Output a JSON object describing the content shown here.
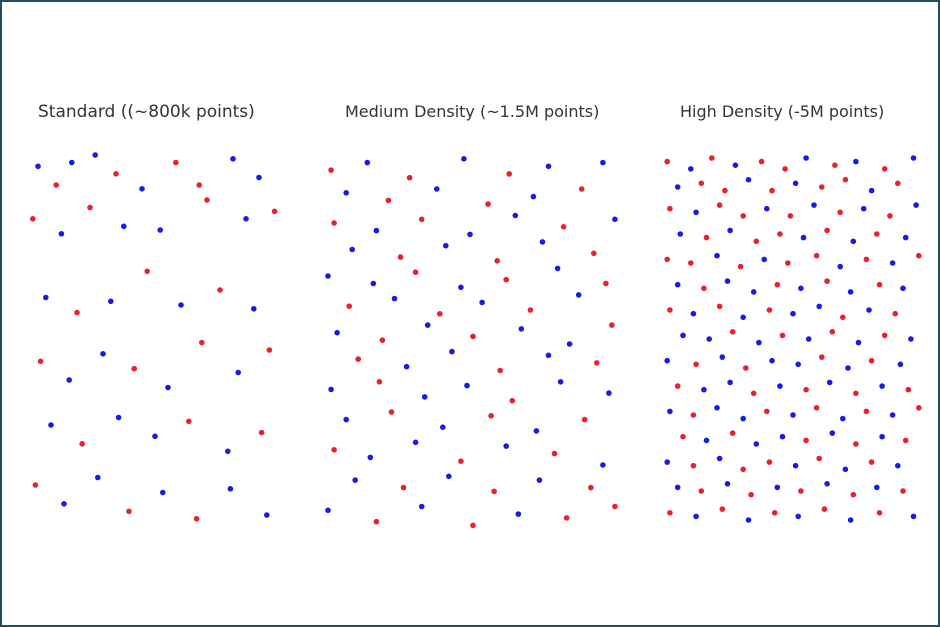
{
  "chart_data": [
    {
      "type": "scatter",
      "title": "Standard  ((~800k points)",
      "colors": {
        "r": "#e8212b",
        "b": "#1a1ae6"
      },
      "grid": false,
      "points": [
        [
          5,
          3,
          "b"
        ],
        [
          12,
          8,
          "r"
        ],
        [
          18,
          2,
          "b"
        ],
        [
          27,
          0,
          "b"
        ],
        [
          35,
          5,
          "r"
        ],
        [
          45,
          9,
          "b"
        ],
        [
          58,
          2,
          "r"
        ],
        [
          67,
          8,
          "r"
        ],
        [
          80,
          1,
          "b"
        ],
        [
          90,
          6,
          "b"
        ],
        [
          3,
          17,
          "r"
        ],
        [
          14,
          21,
          "b"
        ],
        [
          25,
          14,
          "r"
        ],
        [
          38,
          19,
          "b"
        ],
        [
          52,
          20,
          "b"
        ],
        [
          70,
          12,
          "r"
        ],
        [
          85,
          17,
          "b"
        ],
        [
          96,
          15,
          "r"
        ],
        [
          8,
          38,
          "b"
        ],
        [
          20,
          42,
          "r"
        ],
        [
          33,
          39,
          "b"
        ],
        [
          47,
          31,
          "r"
        ],
        [
          60,
          40,
          "b"
        ],
        [
          75,
          36,
          "r"
        ],
        [
          88,
          41,
          "b"
        ],
        [
          6,
          55,
          "r"
        ],
        [
          17,
          60,
          "b"
        ],
        [
          30,
          53,
          "b"
        ],
        [
          42,
          57,
          "r"
        ],
        [
          55,
          62,
          "b"
        ],
        [
          68,
          50,
          "r"
        ],
        [
          82,
          58,
          "b"
        ],
        [
          94,
          52,
          "r"
        ],
        [
          10,
          72,
          "b"
        ],
        [
          22,
          77,
          "r"
        ],
        [
          36,
          70,
          "b"
        ],
        [
          50,
          75,
          "b"
        ],
        [
          63,
          71,
          "r"
        ],
        [
          78,
          79,
          "b"
        ],
        [
          91,
          74,
          "r"
        ],
        [
          4,
          88,
          "r"
        ],
        [
          15,
          93,
          "b"
        ],
        [
          28,
          86,
          "b"
        ],
        [
          40,
          95,
          "r"
        ],
        [
          53,
          90,
          "b"
        ],
        [
          66,
          97,
          "r"
        ],
        [
          79,
          89,
          "b"
        ],
        [
          93,
          96,
          "b"
        ]
      ]
    },
    {
      "type": "scatter",
      "title": "Medium Density (~1.5M points)",
      "colors": {
        "r": "#e8212b",
        "b": "#1a1ae6"
      },
      "grid": false,
      "points": [
        [
          3,
          4,
          "r"
        ],
        [
          15,
          2,
          "b"
        ],
        [
          29,
          6,
          "r"
        ],
        [
          47,
          1,
          "b"
        ],
        [
          62,
          5,
          "r"
        ],
        [
          75,
          3,
          "b"
        ],
        [
          93,
          2,
          "b"
        ],
        [
          8,
          10,
          "b"
        ],
        [
          22,
          12,
          "r"
        ],
        [
          38,
          9,
          "b"
        ],
        [
          55,
          13,
          "r"
        ],
        [
          70,
          11,
          "b"
        ],
        [
          86,
          9,
          "r"
        ],
        [
          4,
          18,
          "r"
        ],
        [
          18,
          20,
          "b"
        ],
        [
          33,
          17,
          "r"
        ],
        [
          49,
          21,
          "b"
        ],
        [
          64,
          16,
          "b"
        ],
        [
          80,
          19,
          "r"
        ],
        [
          97,
          17,
          "b"
        ],
        [
          10,
          25,
          "b"
        ],
        [
          26,
          27,
          "r"
        ],
        [
          41,
          24,
          "b"
        ],
        [
          58,
          28,
          "r"
        ],
        [
          73,
          23,
          "b"
        ],
        [
          90,
          26,
          "r"
        ],
        [
          2,
          32,
          "b"
        ],
        [
          17,
          34,
          "b"
        ],
        [
          31,
          31,
          "r"
        ],
        [
          46,
          35,
          "b"
        ],
        [
          61,
          33,
          "r"
        ],
        [
          78,
          30,
          "b"
        ],
        [
          94,
          34,
          "r"
        ],
        [
          9,
          40,
          "r"
        ],
        [
          24,
          38,
          "b"
        ],
        [
          39,
          42,
          "r"
        ],
        [
          53,
          39,
          "b"
        ],
        [
          69,
          41,
          "r"
        ],
        [
          85,
          37,
          "b"
        ],
        [
          5,
          47,
          "b"
        ],
        [
          20,
          49,
          "r"
        ],
        [
          35,
          45,
          "b"
        ],
        [
          50,
          48,
          "r"
        ],
        [
          66,
          46,
          "b"
        ],
        [
          82,
          50,
          "b"
        ],
        [
          96,
          45,
          "r"
        ],
        [
          12,
          54,
          "r"
        ],
        [
          28,
          56,
          "b"
        ],
        [
          43,
          52,
          "b"
        ],
        [
          59,
          57,
          "r"
        ],
        [
          75,
          53,
          "b"
        ],
        [
          91,
          55,
          "r"
        ],
        [
          3,
          62,
          "b"
        ],
        [
          19,
          60,
          "r"
        ],
        [
          34,
          64,
          "b"
        ],
        [
          48,
          61,
          "b"
        ],
        [
          63,
          65,
          "r"
        ],
        [
          79,
          60,
          "b"
        ],
        [
          95,
          63,
          "b"
        ],
        [
          8,
          70,
          "b"
        ],
        [
          23,
          68,
          "r"
        ],
        [
          40,
          72,
          "b"
        ],
        [
          56,
          69,
          "r"
        ],
        [
          71,
          73,
          "b"
        ],
        [
          87,
          70,
          "r"
        ],
        [
          4,
          78,
          "r"
        ],
        [
          16,
          80,
          "b"
        ],
        [
          31,
          76,
          "b"
        ],
        [
          46,
          81,
          "r"
        ],
        [
          61,
          77,
          "b"
        ],
        [
          77,
          79,
          "r"
        ],
        [
          93,
          82,
          "b"
        ],
        [
          11,
          86,
          "b"
        ],
        [
          27,
          88,
          "r"
        ],
        [
          42,
          85,
          "b"
        ],
        [
          57,
          89,
          "r"
        ],
        [
          72,
          86,
          "b"
        ],
        [
          89,
          88,
          "r"
        ],
        [
          2,
          94,
          "b"
        ],
        [
          18,
          97,
          "r"
        ],
        [
          33,
          93,
          "b"
        ],
        [
          50,
          98,
          "r"
        ],
        [
          65,
          95,
          "b"
        ],
        [
          81,
          96,
          "r"
        ],
        [
          97,
          93,
          "r"
        ]
      ]
    },
    {
      "type": "scatter",
      "title": "High Density (-5M points)",
      "colors": {
        "r": "#e8212b",
        "b": "#1a1ae6"
      },
      "grid": false,
      "points": [
        [
          2,
          1,
          "r"
        ],
        [
          11,
          3,
          "b"
        ],
        [
          19,
          0,
          "r"
        ],
        [
          28,
          2,
          "b"
        ],
        [
          38,
          1,
          "r"
        ],
        [
          47,
          3,
          "r"
        ],
        [
          55,
          0,
          "b"
        ],
        [
          66,
          2,
          "r"
        ],
        [
          74,
          1,
          "b"
        ],
        [
          85,
          3,
          "r"
        ],
        [
          96,
          0,
          "b"
        ],
        [
          6,
          8,
          "b"
        ],
        [
          15,
          7,
          "r"
        ],
        [
          24,
          9,
          "r"
        ],
        [
          33,
          6,
          "b"
        ],
        [
          42,
          9,
          "r"
        ],
        [
          51,
          7,
          "b"
        ],
        [
          61,
          8,
          "r"
        ],
        [
          70,
          6,
          "r"
        ],
        [
          80,
          9,
          "b"
        ],
        [
          90,
          7,
          "r"
        ],
        [
          3,
          14,
          "r"
        ],
        [
          13,
          15,
          "b"
        ],
        [
          22,
          13,
          "r"
        ],
        [
          31,
          16,
          "r"
        ],
        [
          40,
          14,
          "b"
        ],
        [
          49,
          16,
          "r"
        ],
        [
          58,
          13,
          "b"
        ],
        [
          68,
          15,
          "r"
        ],
        [
          77,
          14,
          "b"
        ],
        [
          87,
          16,
          "r"
        ],
        [
          97,
          13,
          "b"
        ],
        [
          7,
          21,
          "b"
        ],
        [
          17,
          22,
          "r"
        ],
        [
          26,
          20,
          "b"
        ],
        [
          36,
          23,
          "r"
        ],
        [
          45,
          21,
          "r"
        ],
        [
          54,
          22,
          "b"
        ],
        [
          63,
          20,
          "r"
        ],
        [
          73,
          23,
          "b"
        ],
        [
          82,
          21,
          "r"
        ],
        [
          93,
          22,
          "b"
        ],
        [
          2,
          28,
          "r"
        ],
        [
          11,
          29,
          "r"
        ],
        [
          21,
          27,
          "b"
        ],
        [
          30,
          30,
          "r"
        ],
        [
          39,
          28,
          "b"
        ],
        [
          48,
          29,
          "r"
        ],
        [
          59,
          27,
          "r"
        ],
        [
          68,
          30,
          "b"
        ],
        [
          78,
          28,
          "r"
        ],
        [
          88,
          29,
          "b"
        ],
        [
          98,
          27,
          "r"
        ],
        [
          6,
          35,
          "b"
        ],
        [
          16,
          36,
          "r"
        ],
        [
          25,
          34,
          "b"
        ],
        [
          35,
          37,
          "b"
        ],
        [
          44,
          35,
          "r"
        ],
        [
          53,
          36,
          "b"
        ],
        [
          63,
          34,
          "r"
        ],
        [
          72,
          37,
          "b"
        ],
        [
          83,
          35,
          "r"
        ],
        [
          92,
          36,
          "b"
        ],
        [
          3,
          42,
          "r"
        ],
        [
          12,
          43,
          "b"
        ],
        [
          22,
          41,
          "r"
        ],
        [
          31,
          44,
          "b"
        ],
        [
          41,
          42,
          "r"
        ],
        [
          50,
          43,
          "b"
        ],
        [
          60,
          41,
          "b"
        ],
        [
          69,
          44,
          "r"
        ],
        [
          79,
          42,
          "b"
        ],
        [
          89,
          43,
          "r"
        ],
        [
          8,
          49,
          "b"
        ],
        [
          18,
          50,
          "b"
        ],
        [
          27,
          48,
          "r"
        ],
        [
          37,
          51,
          "b"
        ],
        [
          46,
          49,
          "r"
        ],
        [
          56,
          50,
          "b"
        ],
        [
          65,
          48,
          "r"
        ],
        [
          75,
          51,
          "b"
        ],
        [
          85,
          49,
          "r"
        ],
        [
          95,
          50,
          "b"
        ],
        [
          2,
          56,
          "b"
        ],
        [
          13,
          57,
          "r"
        ],
        [
          23,
          55,
          "b"
        ],
        [
          32,
          58,
          "r"
        ],
        [
          42,
          56,
          "b"
        ],
        [
          52,
          57,
          "b"
        ],
        [
          61,
          55,
          "r"
        ],
        [
          71,
          58,
          "b"
        ],
        [
          80,
          56,
          "r"
        ],
        [
          91,
          57,
          "b"
        ],
        [
          6,
          63,
          "r"
        ],
        [
          16,
          64,
          "b"
        ],
        [
          26,
          62,
          "b"
        ],
        [
          35,
          65,
          "r"
        ],
        [
          45,
          63,
          "b"
        ],
        [
          55,
          64,
          "r"
        ],
        [
          64,
          62,
          "b"
        ],
        [
          74,
          65,
          "r"
        ],
        [
          84,
          63,
          "b"
        ],
        [
          94,
          64,
          "r"
        ],
        [
          3,
          70,
          "b"
        ],
        [
          12,
          71,
          "r"
        ],
        [
          21,
          69,
          "b"
        ],
        [
          31,
          72,
          "b"
        ],
        [
          40,
          70,
          "r"
        ],
        [
          50,
          71,
          "b"
        ],
        [
          59,
          69,
          "r"
        ],
        [
          69,
          72,
          "b"
        ],
        [
          78,
          70,
          "r"
        ],
        [
          88,
          71,
          "b"
        ],
        [
          98,
          69,
          "r"
        ],
        [
          8,
          77,
          "r"
        ],
        [
          17,
          78,
          "b"
        ],
        [
          27,
          76,
          "r"
        ],
        [
          36,
          79,
          "b"
        ],
        [
          46,
          77,
          "b"
        ],
        [
          55,
          78,
          "r"
        ],
        [
          65,
          76,
          "b"
        ],
        [
          74,
          79,
          "r"
        ],
        [
          84,
          77,
          "b"
        ],
        [
          93,
          78,
          "r"
        ],
        [
          2,
          84,
          "b"
        ],
        [
          12,
          85,
          "r"
        ],
        [
          22,
          83,
          "b"
        ],
        [
          31,
          86,
          "r"
        ],
        [
          41,
          84,
          "r"
        ],
        [
          51,
          85,
          "b"
        ],
        [
          60,
          83,
          "r"
        ],
        [
          70,
          86,
          "b"
        ],
        [
          80,
          84,
          "r"
        ],
        [
          90,
          85,
          "b"
        ],
        [
          6,
          91,
          "b"
        ],
        [
          15,
          92,
          "r"
        ],
        [
          25,
          90,
          "b"
        ],
        [
          34,
          93,
          "r"
        ],
        [
          44,
          91,
          "b"
        ],
        [
          53,
          92,
          "r"
        ],
        [
          63,
          90,
          "b"
        ],
        [
          73,
          93,
          "r"
        ],
        [
          82,
          91,
          "b"
        ],
        [
          92,
          92,
          "r"
        ],
        [
          3,
          98,
          "r"
        ],
        [
          13,
          99,
          "b"
        ],
        [
          23,
          97,
          "r"
        ],
        [
          33,
          100,
          "b"
        ],
        [
          43,
          98,
          "r"
        ],
        [
          52,
          99,
          "b"
        ],
        [
          62,
          97,
          "r"
        ],
        [
          72,
          100,
          "b"
        ],
        [
          83,
          98,
          "r"
        ],
        [
          96,
          99,
          "b"
        ]
      ]
    }
  ]
}
